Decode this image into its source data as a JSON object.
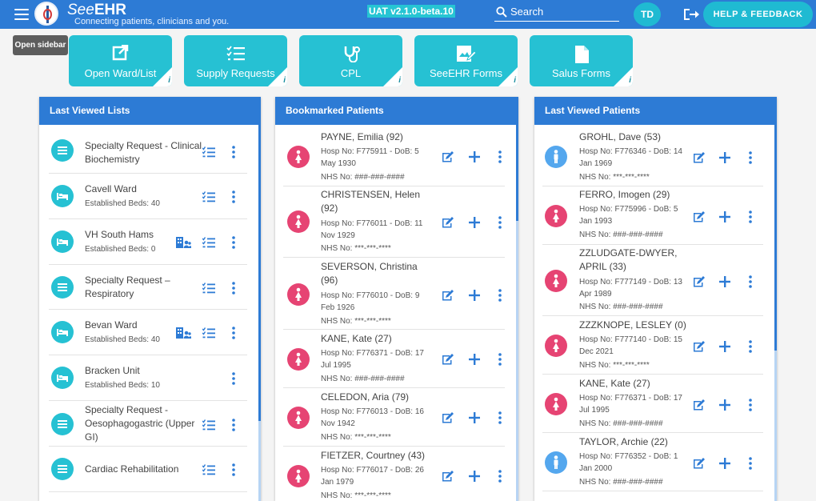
{
  "header": {
    "brand_prefix": "See",
    "brand_bold": "EHR",
    "tagline": "Connecting patients, clinicians and you.",
    "version": "UAT v2.1.0-beta.10",
    "search_label": "Search",
    "user_initials": "TD",
    "help_label": "HELP & FEEDBACK"
  },
  "tooltip": "Open sidebar",
  "quick_actions": [
    {
      "label": "Open Ward/List",
      "icon": "open-external-icon"
    },
    {
      "label": "Supply Requests",
      "icon": "checklist-icon"
    },
    {
      "label": "CPL",
      "icon": "stethoscope-icon"
    },
    {
      "label": "SeeEHR Forms",
      "icon": "form-edit-icon"
    },
    {
      "label": "Salus Forms",
      "icon": "document-icon"
    }
  ],
  "info_glyph": "i",
  "last_viewed_lists": {
    "title": "Last Viewed Lists",
    "items": [
      {
        "title": "Specialty Request - Clinical Biochemistry",
        "sub": "",
        "icon": "list-icon"
      },
      {
        "title": "Cavell Ward",
        "sub": "Established Beds: 40",
        "icon": "bed-icon"
      },
      {
        "title": "VH South Hams",
        "sub": "Established Beds: 0",
        "icon": "bed-icon"
      },
      {
        "title": "Specialty Request – Respiratory",
        "sub": "",
        "icon": "list-icon"
      },
      {
        "title": "Bevan Ward",
        "sub": "Established Beds: 40",
        "icon": "bed-icon"
      },
      {
        "title": "Bracken Unit",
        "sub": "Established Beds: 10",
        "icon": "bed-icon"
      },
      {
        "title": "Specialty Request - Oesophagogastric (Upper GI)",
        "sub": "",
        "icon": "list-icon"
      },
      {
        "title": "Cardiac Rehabilitation",
        "sub": "",
        "icon": "list-icon"
      }
    ]
  },
  "bookmarked_patients": {
    "title": "Bookmarked Patients",
    "items": [
      {
        "name": "PAYNE, Emilia (92)",
        "detail": "Hosp No: F775911 - DoB: 5 May 1930",
        "nhs": "NHS No: ###-###-####",
        "sex": "female"
      },
      {
        "name": "CHRISTENSEN, Helen (92)",
        "detail": "Hosp No: F776011 - DoB: 11 Nov 1929",
        "nhs": "NHS No: ***-***-****",
        "sex": "female"
      },
      {
        "name": "SEVERSON, Christina (96)",
        "detail": "Hosp No: F776010 - DoB: 9 Feb 1926",
        "nhs": "NHS No: ***-***-****",
        "sex": "female"
      },
      {
        "name": "KANE, Kate (27)",
        "detail": "Hosp No: F776371 - DoB: 17 Jul 1995",
        "nhs": "NHS No: ###-###-####",
        "sex": "female"
      },
      {
        "name": "CELEDON, Aria (79)",
        "detail": "Hosp No: F776013 - DoB: 16 Nov 1942",
        "nhs": "NHS No: ***-***-****",
        "sex": "female"
      },
      {
        "name": "FIETZER, Courtney (43)",
        "detail": "Hosp No: F776017 - DoB: 26 Jan 1979",
        "nhs": "NHS No: ***-***-****",
        "sex": "female"
      }
    ]
  },
  "last_viewed_patients": {
    "title": "Last Viewed Patients",
    "items": [
      {
        "name": "GROHL, Dave (53)",
        "detail": "Hosp No: F776346 - DoB: 14 Jan 1969",
        "nhs": "NHS No: ***-***-****",
        "sex": "male"
      },
      {
        "name": "FERRO, Imogen (29)",
        "detail": "Hosp No: F775996 - DoB: 5 Jan 1993",
        "nhs": "NHS No: ###-###-####",
        "sex": "female"
      },
      {
        "name": "ZZLUDGATE-DWYER, APRIL (33)",
        "detail": "Hosp No: F777149 - DoB: 13 Apr 1989",
        "nhs": "NHS No: ###-###-####",
        "sex": "female"
      },
      {
        "name": "ZZZKNOPE, LESLEY (0)",
        "detail": "Hosp No: F777140 - DoB: 15 Dec 2021",
        "nhs": "NHS No: ***-***-****",
        "sex": "female"
      },
      {
        "name": "KANE, Kate (27)",
        "detail": "Hosp No: F776371 - DoB: 17 Jul 1995",
        "nhs": "NHS No: ###-###-####",
        "sex": "female"
      },
      {
        "name": "TAYLOR, Archie (22)",
        "detail": "Hosp No: F776352 - DoB: 1 Jan 2000",
        "nhs": "NHS No: ###-###-####",
        "sex": "male"
      }
    ]
  },
  "colors": {
    "primary": "#2d7bd5",
    "accent": "#26c1d3",
    "female": "#e64473",
    "male": "#54a7ee"
  }
}
